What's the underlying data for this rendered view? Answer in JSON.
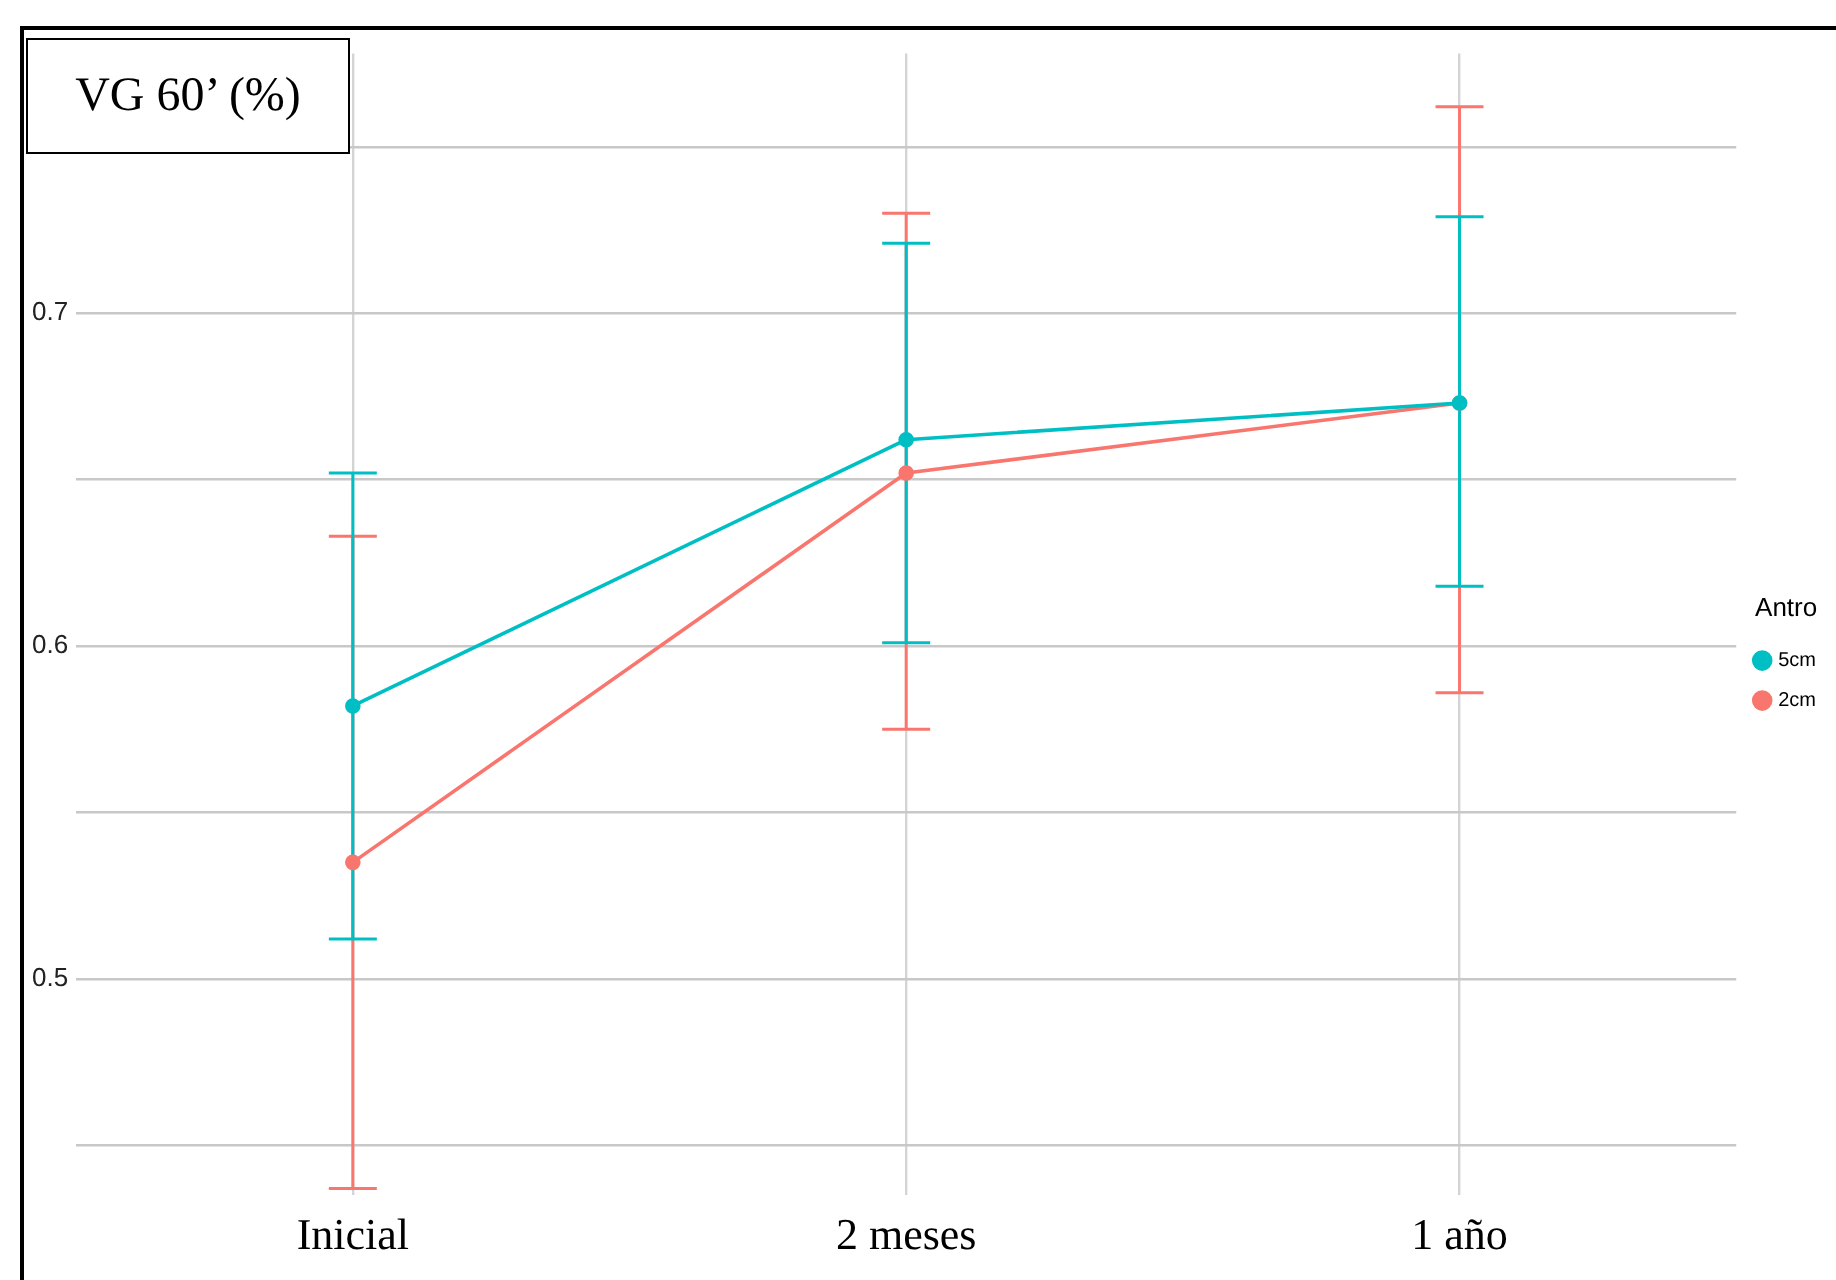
{
  "chart_data": {
    "type": "line",
    "title": "VG 60’ (%)",
    "legend_title": "Antro",
    "categories": [
      "Inicial",
      "2 meses",
      "1 año"
    ],
    "series": [
      {
        "name": "2cm",
        "color": "#f8766d",
        "values": [
          0.535,
          0.652,
          0.673
        ],
        "errors": [
          [
            0.437,
            0.633
          ],
          [
            0.575,
            0.73
          ],
          [
            0.586,
            0.762
          ]
        ]
      },
      {
        "name": "5cm",
        "color": "#00bfc4",
        "values": [
          0.582,
          0.662,
          0.673
        ],
        "errors": [
          [
            0.512,
            0.652
          ],
          [
            0.601,
            0.721
          ],
          [
            0.618,
            0.729
          ]
        ]
      }
    ],
    "ylim": [
      0.435,
      0.778
    ],
    "yticks": [
      {
        "value": 0.45,
        "label": null
      },
      0.5,
      {
        "value": 0.55,
        "label": null
      },
      0.6,
      {
        "value": 0.65,
        "label": null
      },
      0.7,
      {
        "value": 0.75,
        "label": null
      }
    ],
    "grid": true,
    "legend": "right",
    "marker": "circle",
    "line_style": "solid"
  }
}
